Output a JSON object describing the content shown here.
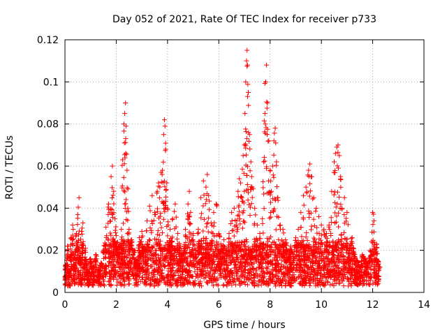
{
  "chart_data": {
    "type": "scatter",
    "title": "Day 052 of 2021, Rate Of TEC Index for receiver p733",
    "xlabel": "GPS time / hours",
    "ylabel": "ROTI / TECUs",
    "xlim": [
      0,
      14
    ],
    "ylim": [
      0,
      0.12
    ],
    "xticks": [
      0,
      2,
      4,
      6,
      8,
      10,
      12,
      14
    ],
    "yticks": [
      0,
      0.02,
      0.04,
      0.06,
      0.08,
      0.1,
      0.12
    ],
    "ytick_labels": [
      "0",
      "0.02",
      "0.04",
      "0.06",
      "0.08",
      "0.1",
      "0.12"
    ],
    "grid": true,
    "marker": "+",
    "series": [
      {
        "name": "ROTI",
        "color": "#ff0000",
        "data_range_hours": [
          0,
          12.25
        ],
        "points": [
          [
            0.05,
            0.013
          ],
          [
            0.1,
            0.022
          ],
          [
            0.15,
            0.008
          ],
          [
            0.2,
            0.017
          ],
          [
            0.25,
            0.026
          ],
          [
            0.3,
            0.032
          ],
          [
            0.35,
            0.011
          ],
          [
            0.4,
            0.019
          ],
          [
            0.45,
            0.028
          ],
          [
            0.5,
            0.037
          ],
          [
            0.55,
            0.045
          ],
          [
            0.6,
            0.015
          ],
          [
            0.65,
            0.029
          ],
          [
            0.7,
            0.033
          ],
          [
            0.75,
            0.012
          ],
          [
            0.8,
            0.021
          ],
          [
            0.9,
            0.009
          ],
          [
            1.0,
            0.016
          ],
          [
            1.1,
            0.012
          ],
          [
            1.2,
            0.018
          ],
          [
            1.3,
            0.01
          ],
          [
            1.4,
            0.014
          ],
          [
            1.5,
            0.02
          ],
          [
            1.6,
            0.031
          ],
          [
            1.7,
            0.042
          ],
          [
            1.75,
            0.038
          ],
          [
            1.8,
            0.055
          ],
          [
            1.85,
            0.06
          ],
          [
            1.9,
            0.048
          ],
          [
            1.95,
            0.035
          ],
          [
            2.0,
            0.027
          ],
          [
            2.1,
            0.022
          ],
          [
            2.2,
            0.03
          ],
          [
            2.25,
            0.063
          ],
          [
            2.3,
            0.08
          ],
          [
            2.33,
            0.085
          ],
          [
            2.36,
            0.09
          ],
          [
            2.38,
            0.079
          ],
          [
            2.42,
            0.058
          ],
          [
            2.45,
            0.04
          ],
          [
            2.5,
            0.03
          ],
          [
            2.6,
            0.025
          ],
          [
            2.7,
            0.02
          ],
          [
            2.8,
            0.015
          ],
          [
            2.9,
            0.026
          ],
          [
            3.0,
            0.029
          ],
          [
            3.1,
            0.022
          ],
          [
            3.2,
            0.034
          ],
          [
            3.3,
            0.041
          ],
          [
            3.4,
            0.046
          ],
          [
            3.5,
            0.038
          ],
          [
            3.6,
            0.048
          ],
          [
            3.65,
            0.052
          ],
          [
            3.7,
            0.05
          ],
          [
            3.75,
            0.057
          ],
          [
            3.8,
            0.058
          ],
          [
            3.85,
            0.075
          ],
          [
            3.88,
            0.082
          ],
          [
            3.9,
            0.079
          ],
          [
            3.93,
            0.068
          ],
          [
            3.97,
            0.052
          ],
          [
            4.0,
            0.04
          ],
          [
            4.1,
            0.03
          ],
          [
            4.2,
            0.035
          ],
          [
            4.3,
            0.042
          ],
          [
            4.4,
            0.028
          ],
          [
            4.5,
            0.022
          ],
          [
            4.6,
            0.018
          ],
          [
            4.7,
            0.03
          ],
          [
            4.8,
            0.042
          ],
          [
            4.85,
            0.048
          ],
          [
            4.9,
            0.038
          ],
          [
            5.0,
            0.028
          ],
          [
            5.1,
            0.02
          ],
          [
            5.2,
            0.03
          ],
          [
            5.3,
            0.045
          ],
          [
            5.4,
            0.053
          ],
          [
            5.5,
            0.05
          ],
          [
            5.55,
            0.056
          ],
          [
            5.6,
            0.046
          ],
          [
            5.7,
            0.033
          ],
          [
            5.8,
            0.038
          ],
          [
            5.9,
            0.042
          ],
          [
            6.0,
            0.028
          ],
          [
            6.1,
            0.022
          ],
          [
            6.2,
            0.025
          ],
          [
            6.3,
            0.02
          ],
          [
            6.4,
            0.028
          ],
          [
            6.5,
            0.038
          ],
          [
            6.6,
            0.04
          ],
          [
            6.7,
            0.034
          ],
          [
            6.75,
            0.048
          ],
          [
            6.8,
            0.054
          ],
          [
            6.85,
            0.052
          ],
          [
            6.9,
            0.045
          ],
          [
            6.95,
            0.065
          ],
          [
            7.0,
            0.07
          ],
          [
            7.02,
            0.085
          ],
          [
            7.05,
            0.1
          ],
          [
            7.08,
            0.11
          ],
          [
            7.1,
            0.115
          ],
          [
            7.12,
            0.108
          ],
          [
            7.15,
            0.095
          ],
          [
            7.2,
            0.075
          ],
          [
            7.25,
            0.062
          ],
          [
            7.3,
            0.05
          ],
          [
            7.4,
            0.04
          ],
          [
            7.5,
            0.032
          ],
          [
            7.6,
            0.028
          ],
          [
            7.7,
            0.035
          ],
          [
            7.75,
            0.062
          ],
          [
            7.8,
            0.085
          ],
          [
            7.83,
            0.1
          ],
          [
            7.86,
            0.108
          ],
          [
            7.9,
            0.09
          ],
          [
            7.95,
            0.072
          ],
          [
            8.0,
            0.058
          ],
          [
            8.05,
            0.048
          ],
          [
            8.1,
            0.06
          ],
          [
            8.15,
            0.072
          ],
          [
            8.2,
            0.078
          ],
          [
            8.25,
            0.062
          ],
          [
            8.3,
            0.045
          ],
          [
            8.4,
            0.032
          ],
          [
            8.5,
            0.03
          ],
          [
            8.6,
            0.025
          ],
          [
            8.7,
            0.02
          ],
          [
            8.8,
            0.022
          ],
          [
            8.9,
            0.018
          ],
          [
            9.0,
            0.026
          ],
          [
            9.1,
            0.03
          ],
          [
            9.2,
            0.038
          ],
          [
            9.3,
            0.046
          ],
          [
            9.4,
            0.05
          ],
          [
            9.5,
            0.058
          ],
          [
            9.55,
            0.061
          ],
          [
            9.6,
            0.055
          ],
          [
            9.7,
            0.045
          ],
          [
            9.8,
            0.04
          ],
          [
            9.9,
            0.036
          ],
          [
            10.0,
            0.032
          ],
          [
            10.1,
            0.03
          ],
          [
            10.2,
            0.028
          ],
          [
            10.3,
            0.032
          ],
          [
            10.4,
            0.048
          ],
          [
            10.5,
            0.062
          ],
          [
            10.55,
            0.066
          ],
          [
            10.6,
            0.069
          ],
          [
            10.65,
            0.07
          ],
          [
            10.7,
            0.065
          ],
          [
            10.75,
            0.055
          ],
          [
            10.8,
            0.04
          ],
          [
            10.9,
            0.045
          ],
          [
            11.0,
            0.038
          ],
          [
            11.1,
            0.022
          ],
          [
            11.2,
            0.026
          ],
          [
            11.3,
            0.018
          ],
          [
            11.4,
            0.015
          ],
          [
            11.5,
            0.012
          ],
          [
            11.6,
            0.018
          ],
          [
            11.7,
            0.016
          ],
          [
            11.8,
            0.014
          ],
          [
            11.9,
            0.02
          ],
          [
            12.0,
            0.038
          ],
          [
            12.05,
            0.034
          ],
          [
            12.1,
            0.02
          ],
          [
            12.15,
            0.023
          ],
          [
            12.2,
            0.015
          ],
          [
            12.25,
            0.012
          ]
        ]
      }
    ]
  }
}
